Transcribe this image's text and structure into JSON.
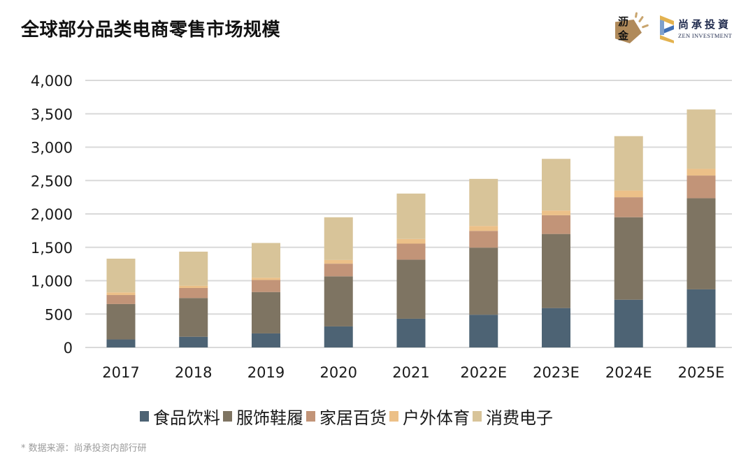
{
  "title": "全球部分品类电商零售市场规模",
  "logos": {
    "left": {
      "line1": "沥",
      "line2": "金",
      "icon": "lijin-logo-icon"
    },
    "right": {
      "cn": "尚承投資",
      "en": "ZEN INVESTMENT",
      "icon": "zen-investment-logo-icon"
    }
  },
  "source_note": "* 数据来源：尚承投资内部行研",
  "chart_data": {
    "type": "bar",
    "stacked": true,
    "title": "全球部分品类电商零售市场规模",
    "xlabel": "",
    "ylabel": "",
    "ylim": [
      0,
      4000
    ],
    "yticks": [
      0,
      500,
      1000,
      1500,
      2000,
      2500,
      3000,
      3500,
      4000
    ],
    "ytick_labels": [
      "0",
      "500",
      "1,000",
      "1,500",
      "2,000",
      "2,500",
      "3,000",
      "3,500",
      "4,000"
    ],
    "grid": true,
    "legend_position": "bottom",
    "categories": [
      "2017",
      "2018",
      "2019",
      "2020",
      "2021",
      "2022E",
      "2023E",
      "2024E",
      "2025E"
    ],
    "series": [
      {
        "name": "食品饮料",
        "color": "#4d6374",
        "values": [
          120,
          160,
          210,
          315,
          430,
          490,
          590,
          715,
          870
        ]
      },
      {
        "name": "服饰鞋履",
        "color": "#7e7462",
        "values": [
          530,
          580,
          620,
          750,
          885,
          1005,
          1110,
          1235,
          1365
        ]
      },
      {
        "name": "家居百货",
        "color": "#c29478",
        "values": [
          135,
          150,
          180,
          190,
          240,
          250,
          280,
          300,
          340
        ]
      },
      {
        "name": "户外体育",
        "color": "#ecc088",
        "values": [
          40,
          35,
          35,
          55,
          70,
          75,
          70,
          100,
          100
        ]
      },
      {
        "name": "消费电子",
        "color": "#d8c499",
        "values": [
          505,
          510,
          520,
          640,
          680,
          705,
          775,
          815,
          890
        ]
      }
    ]
  }
}
